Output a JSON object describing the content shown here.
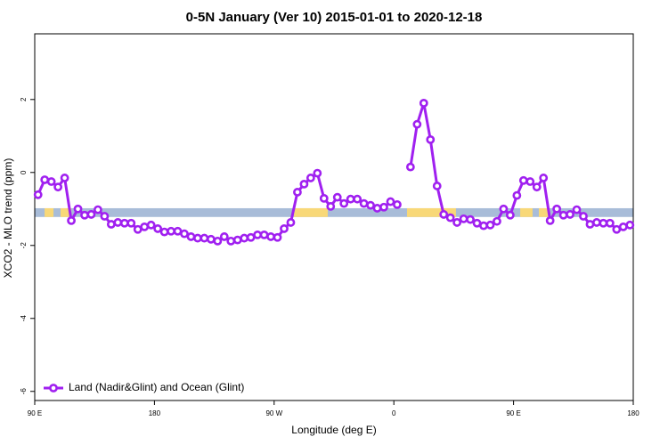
{
  "chart_data": {
    "type": "line",
    "title": "0-5N January (Ver 10)   2015-01-01 to 2020-12-18",
    "xlabel": "Longitude (deg E)",
    "ylabel": "XCO2 - MLO trend (ppm)",
    "xlim": [
      90,
      540
    ],
    "xticks": [
      {
        "value": 90,
        "label": "90 E"
      },
      {
        "value": 180,
        "label": "180"
      },
      {
        "value": 270,
        "label": "90 W"
      },
      {
        "value": 360,
        "label": "0"
      },
      {
        "value": 450,
        "label": "90 E"
      },
      {
        "value": 540,
        "label": "180"
      }
    ],
    "ylim": [
      -6.25,
      3.8
    ],
    "yticks": [
      -6,
      -4,
      -2,
      0,
      2
    ],
    "legend": "bottomleft",
    "strip": {
      "ylim": [
        -1.22,
        -0.98
      ],
      "ocean_color": "#a8bcd8",
      "land_color": "#f8d878",
      "land": [
        [
          97.4,
          104.1
        ],
        [
          109.4,
          117.5
        ],
        [
          284.9,
          310.3
        ],
        [
          369.9,
          406.7
        ],
        [
          455,
          464.3
        ],
        [
          469,
          476.4
        ]
      ]
    },
    "x": [
      92.5,
      97.5,
      102.5,
      107.5,
      112.5,
      117.5,
      122.5,
      127.5,
      132.5,
      137.5,
      142.5,
      147.5,
      152.5,
      157.5,
      162.5,
      167.5,
      172.5,
      177.5,
      182.5,
      187.5,
      192.5,
      197.5,
      202.5,
      207.5,
      212.5,
      217.5,
      222.5,
      227.5,
      232.5,
      237.5,
      242.5,
      247.5,
      252.5,
      257.5,
      262.5,
      267.5,
      272.5,
      277.5,
      282.5,
      287.5,
      292.5,
      297.5,
      302.5,
      307.5,
      312.5,
      317.5,
      322.5,
      327.5,
      332.5,
      337.5,
      342.5,
      347.5,
      352.5,
      357.5,
      362.5,
      367.5,
      372.5,
      377.5,
      382.5,
      387.5,
      392.5,
      397.5,
      402.5,
      407.5,
      412.5,
      417.5,
      422.5,
      427.5,
      432.5,
      437.5,
      442.5,
      447.5,
      452.5,
      457.5,
      462.5,
      467.5,
      472.5,
      477.5,
      482.5,
      487.5,
      492.5,
      497.5,
      502.5,
      507.5,
      512.5,
      517.5,
      522.5,
      527.5,
      532.5,
      537.5
    ],
    "series": [
      {
        "name": "Land (Nadir&Glint) and Ocean (Glint)",
        "color": "#a020f0",
        "values": [
          -0.61,
          -0.2,
          -0.25,
          -0.4,
          -0.15,
          -1.32,
          -1.0,
          -1.17,
          -1.15,
          -1.02,
          -1.2,
          -1.42,
          -1.37,
          -1.39,
          -1.39,
          -1.56,
          -1.49,
          -1.44,
          -1.54,
          -1.63,
          -1.61,
          -1.61,
          -1.68,
          -1.76,
          -1.8,
          -1.8,
          -1.83,
          -1.88,
          -1.76,
          -1.88,
          -1.85,
          -1.8,
          -1.78,
          -1.71,
          -1.71,
          -1.76,
          -1.78,
          -1.54,
          -1.37,
          -0.54,
          -0.32,
          -0.15,
          -0.02,
          -0.71,
          -0.93,
          -0.68,
          -0.85,
          -0.73,
          -0.73,
          -0.85,
          -0.9,
          -0.98,
          -0.95,
          -0.8,
          -0.88,
          null,
          0.15,
          1.32,
          1.9,
          0.9,
          -0.37,
          -1.15,
          -1.24,
          -1.37,
          -1.27,
          -1.29,
          -1.39,
          -1.46,
          -1.44,
          -1.34,
          -1.0,
          -1.17,
          -0.63,
          -0.22,
          -0.25,
          -0.4,
          -0.15,
          -1.32,
          -1.0,
          -1.17,
          -1.15,
          -1.02,
          -1.2,
          -1.42,
          -1.37,
          -1.39,
          -1.39,
          -1.56,
          -1.49,
          -1.44
        ]
      }
    ]
  }
}
